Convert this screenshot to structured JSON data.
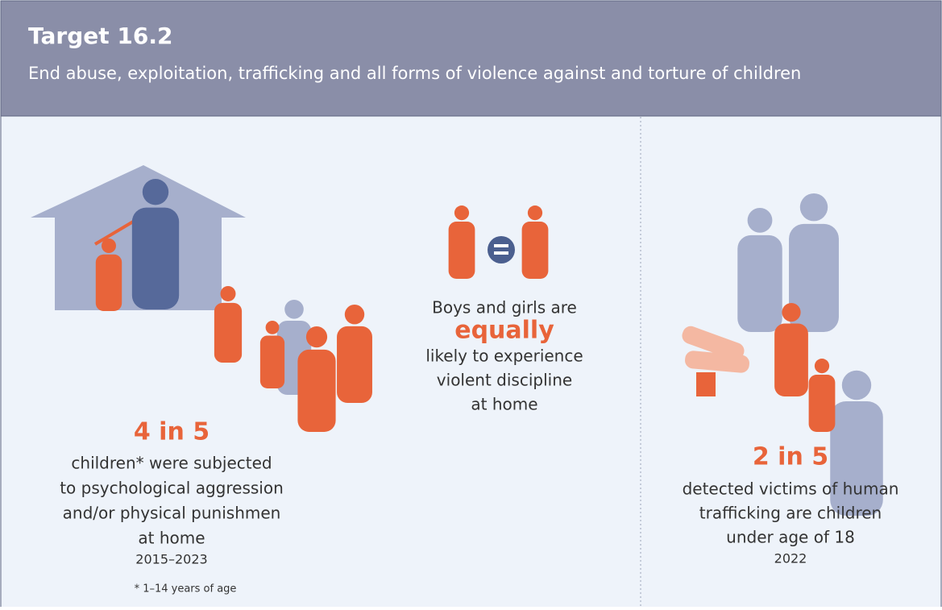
{
  "header": {
    "title": "Target 16.2",
    "subtitle": "End abuse, exploitation, trafficking and all forms of violence against and torture of children"
  },
  "panels": [
    {
      "stat": "4 in 5",
      "lines": [
        "children* were subjected",
        "to psychological aggression",
        "and/or physical punishmen",
        "at home"
      ],
      "years": "2015–2023",
      "footnote": "* 1–14 years of age"
    },
    {
      "lines": [
        "Boys and girls are"
      ],
      "emphasis": "equally",
      "more": [
        "likely to experience",
        "violent discipline",
        "at home"
      ]
    },
    {
      "stat": "2 in 5",
      "lines": [
        "detected victims of human",
        "trafficking are children",
        "under age of 18"
      ],
      "years": "2022"
    }
  ]
}
